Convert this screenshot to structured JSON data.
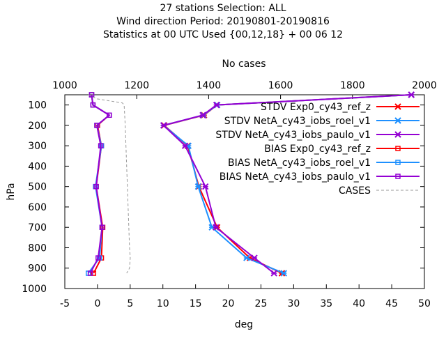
{
  "chart_data": {
    "type": "line",
    "title_lines": [
      "27 stations Selection: ALL",
      "Wind direction  Period: 20190801-20190816",
      "Statistics at 00 UTC  Used {00,12,18} + 00 06 12"
    ],
    "xlabel": "deg",
    "ylabel": "hPa",
    "x2label": "No cases",
    "xlim": [
      -5,
      50
    ],
    "ylim": [
      1000,
      50
    ],
    "x2lim": [
      1000,
      2000
    ],
    "xticks": [
      "-5",
      "0",
      "5",
      "10",
      "15",
      "20",
      "25",
      "30",
      "35",
      "40",
      "45",
      "50"
    ],
    "yticks": [
      "100",
      "200",
      "300",
      "400",
      "500",
      "600",
      "700",
      "800",
      "900",
      "1000"
    ],
    "x2ticks": [
      "1000",
      "1200",
      "1400",
      "1600",
      "1800",
      "2000"
    ],
    "legend_position": "top-right",
    "series": [
      {
        "name": "STDV Exp0_cy43_ref_z",
        "color": "#ff0000",
        "marker": "x",
        "points": [
          [
            48,
            50
          ],
          [
            18.3,
            100
          ],
          [
            16.3,
            150
          ],
          [
            10.2,
            200
          ],
          [
            13.8,
            300
          ],
          [
            15.5,
            500
          ],
          [
            18.3,
            700
          ],
          [
            23.3,
            850
          ],
          [
            28.2,
            925
          ]
        ]
      },
      {
        "name": "STDV NetA_cy43_iobs_roel_v1",
        "color": "#1e90ff",
        "marker": "x",
        "points": [
          [
            48,
            50
          ],
          [
            18.3,
            100
          ],
          [
            16.2,
            150
          ],
          [
            10.1,
            200
          ],
          [
            13.9,
            300
          ],
          [
            15.4,
            500
          ],
          [
            17.5,
            700
          ],
          [
            22.8,
            850
          ],
          [
            28.5,
            925
          ]
        ]
      },
      {
        "name": "STDV NetA_cy43_iobs_paulo_v1",
        "color": "#9400d3",
        "marker": "x",
        "points": [
          [
            48,
            50
          ],
          [
            18.2,
            100
          ],
          [
            16.1,
            150
          ],
          [
            10.1,
            200
          ],
          [
            13.4,
            300
          ],
          [
            16.5,
            500
          ],
          [
            18.1,
            700
          ],
          [
            24.0,
            850
          ],
          [
            27.0,
            925
          ]
        ]
      },
      {
        "name": "BIAS Exp0_cy43_ref_z",
        "color": "#ff0000",
        "marker": "square",
        "points": [
          [
            -0.9,
            50
          ],
          [
            -0.7,
            100
          ],
          [
            1.8,
            150
          ],
          [
            0.0,
            200
          ],
          [
            0.6,
            300
          ],
          [
            -0.2,
            500
          ],
          [
            0.8,
            700
          ],
          [
            0.6,
            850
          ],
          [
            -0.6,
            925
          ]
        ]
      },
      {
        "name": "BIAS NetA_cy43_iobs_roel_v1",
        "color": "#1e90ff",
        "marker": "square",
        "points": [
          [
            -0.9,
            50
          ],
          [
            -0.7,
            100
          ],
          [
            1.8,
            150
          ],
          [
            -0.1,
            200
          ],
          [
            0.6,
            300
          ],
          [
            -0.3,
            500
          ],
          [
            0.7,
            700
          ],
          [
            0.3,
            850
          ],
          [
            -1.4,
            925
          ]
        ]
      },
      {
        "name": "BIAS NetA_cy43_iobs_paulo_v1",
        "color": "#9400d3",
        "marker": "square",
        "points": [
          [
            -0.9,
            50
          ],
          [
            -0.7,
            100
          ],
          [
            1.8,
            150
          ],
          [
            -0.1,
            200
          ],
          [
            0.5,
            300
          ],
          [
            -0.2,
            500
          ],
          [
            0.7,
            700
          ],
          [
            0.1,
            850
          ],
          [
            -1.1,
            925
          ]
        ]
      },
      {
        "name": "CASES",
        "color": "#999999",
        "marker": "none",
        "dashed": true,
        "axis": "x2",
        "points": [
          [
            1065,
            50
          ],
          [
            1090,
            70
          ],
          [
            1160,
            90
          ],
          [
            1165,
            100
          ],
          [
            1168,
            200
          ],
          [
            1170,
            300
          ],
          [
            1172,
            400
          ],
          [
            1174,
            500
          ],
          [
            1176,
            600
          ],
          [
            1178,
            700
          ],
          [
            1180,
            800
          ],
          [
            1182,
            850
          ],
          [
            1180,
            900
          ],
          [
            1172,
            925
          ]
        ]
      }
    ]
  }
}
